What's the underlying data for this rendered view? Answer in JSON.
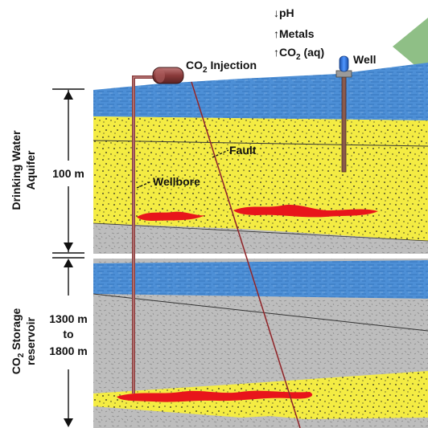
{
  "effects": {
    "ph": "↓pH",
    "metals": "↑Metals",
    "co2_aq_prefix": "↑CO",
    "co2_aq_sub": "2",
    "co2_aq_suffix": " (aq)"
  },
  "injection": {
    "prefix": "CO",
    "sub": "2",
    "suffix": " Injection"
  },
  "well_label": "Well",
  "fault_label": "Fault",
  "wellbore_label": "Wellbore",
  "upper_zone": {
    "title_line1": "Drinking Water",
    "title_line2": "Aquifer",
    "thickness": "100 m"
  },
  "lower_zone": {
    "title_line1_prefix": "CO",
    "title_line1_sub": "2",
    "title_line1_suffix": " Storage",
    "title_line2": "reservoir",
    "depth_line1": "1300 m",
    "depth_line2": "to",
    "depth_line3": "1800 m"
  },
  "colors": {
    "water": "#4d8fd6",
    "sand": "#f4ec43",
    "rock": "#b9b9b9",
    "co2_plume": "#e8151b",
    "fault_line": "#c0272d",
    "tank": "#8a3a3a",
    "well_cap": "#2e6fd8",
    "hill": "#8fbf86"
  }
}
